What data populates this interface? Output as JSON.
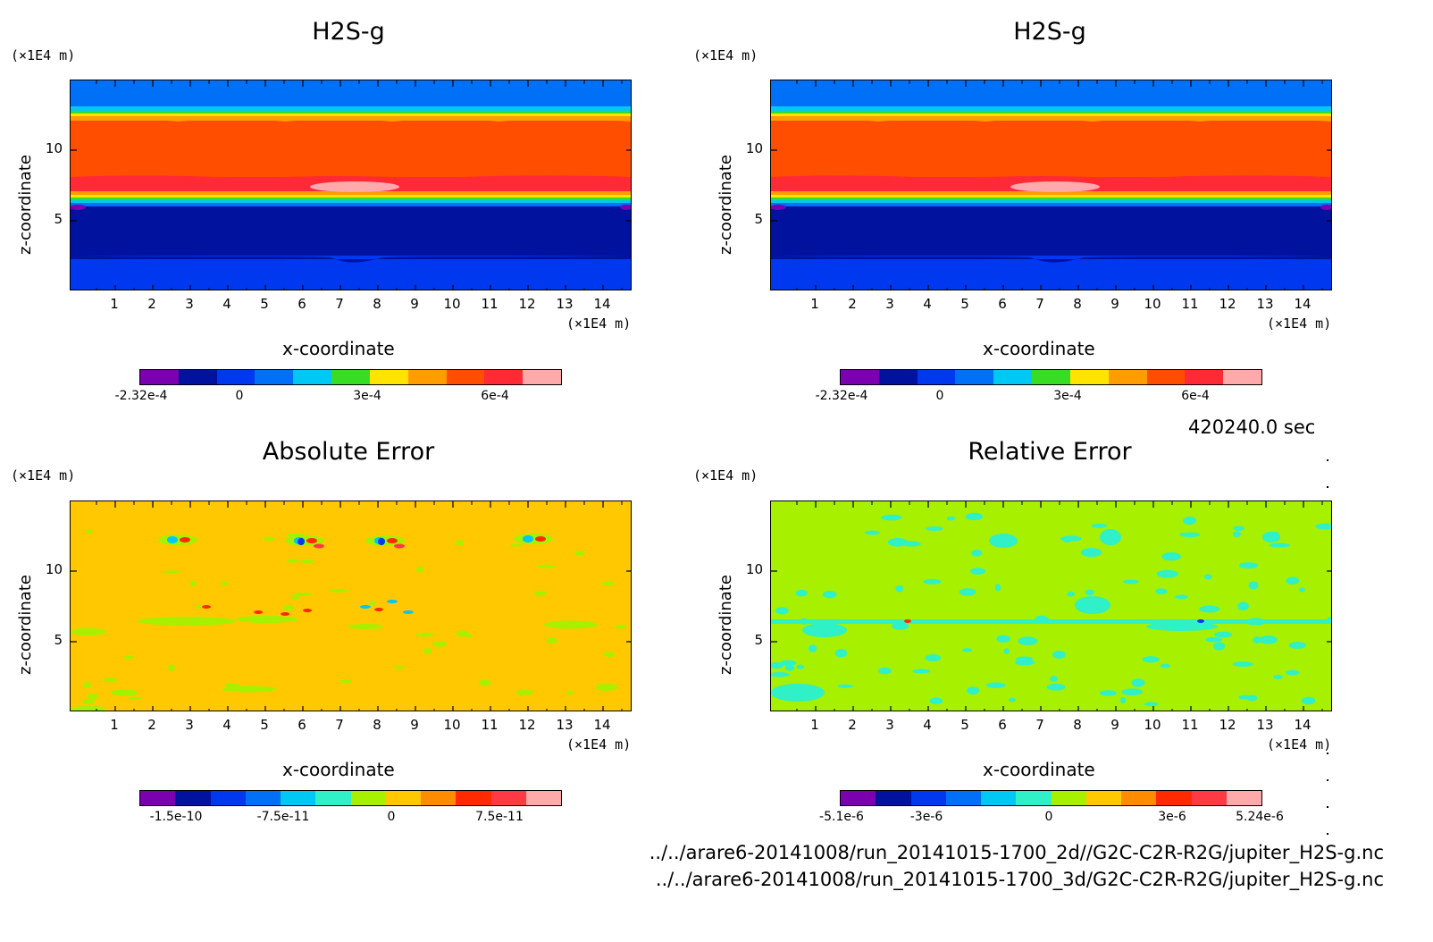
{
  "panels": [
    {
      "title": "H2S-g",
      "yunit": "(×1E4 m)",
      "xunit": "(×1E4 m)",
      "xlabel": "x-coordinate",
      "ylabel": "z-coordinate",
      "xticks": [
        "1",
        "2",
        "3",
        "4",
        "5",
        "6",
        "7",
        "8",
        "9",
        "10",
        "11",
        "12",
        "13",
        "14"
      ],
      "yticks": [
        "10",
        "5"
      ],
      "colorbar_labels": [
        "-2.32e-4",
        "0",
        "3e-4",
        "6e-4"
      ],
      "colorbar_colors": [
        "#7a00b0",
        "#00129e",
        "#0038f0",
        "#0070f6",
        "#00c8f4",
        "#39dc24",
        "#ffe400",
        "#ff9c00",
        "#ff4e00",
        "#ff2a36",
        "#ffaaaa"
      ]
    },
    {
      "title": "H2S-g",
      "yunit": "(×1E4 m)",
      "xunit": "(×1E4 m)",
      "xlabel": "x-coordinate",
      "ylabel": "z-coordinate",
      "xticks": [
        "1",
        "2",
        "3",
        "4",
        "5",
        "6",
        "7",
        "8",
        "9",
        "10",
        "11",
        "12",
        "13",
        "14"
      ],
      "yticks": [
        "10",
        "5"
      ],
      "colorbar_labels": [
        "-2.32e-4",
        "0",
        "3e-4",
        "6e-4"
      ],
      "colorbar_colors": [
        "#7a00b0",
        "#00129e",
        "#0038f0",
        "#0070f6",
        "#00c8f4",
        "#39dc24",
        "#ffe400",
        "#ff9c00",
        "#ff4e00",
        "#ff2a36",
        "#ffaaaa"
      ]
    },
    {
      "title": "Absolute Error",
      "yunit": "(×1E4 m)",
      "xunit": "(×1E4 m)",
      "xlabel": "x-coordinate",
      "ylabel": "z-coordinate",
      "xticks": [
        "1",
        "2",
        "3",
        "4",
        "5",
        "6",
        "7",
        "8",
        "9",
        "10",
        "11",
        "12",
        "13",
        "14"
      ],
      "yticks": [
        "10",
        "5"
      ],
      "colorbar_labels": [
        "-1.5e-10",
        "-7.5e-11",
        "0",
        "7.5e-11"
      ],
      "colorbar_colors": [
        "#7a00b0",
        "#00129e",
        "#0038f0",
        "#0070f6",
        "#00c8f4",
        "#30f0c8",
        "#a6f000",
        "#ffc800",
        "#ff8c00",
        "#ff2a00",
        "#ff3a44",
        "#ffaaaa"
      ]
    },
    {
      "title": "Relative Error",
      "yunit": "(×1E4 m)",
      "xunit": "(×1E4 m)",
      "xlabel": "x-coordinate",
      "ylabel": "z-coordinate",
      "xticks": [
        "1",
        "2",
        "3",
        "4",
        "5",
        "6",
        "7",
        "8",
        "9",
        "10",
        "11",
        "12",
        "13",
        "14"
      ],
      "yticks": [
        "10",
        "5"
      ],
      "colorbar_labels": [
        "-5.1e-6",
        "-3e-6",
        "0",
        "3e-6",
        "5.24e-6"
      ],
      "colorbar_colors": [
        "#7a00b0",
        "#00129e",
        "#0038f0",
        "#0070f6",
        "#00c8f4",
        "#30f0c8",
        "#a6f000",
        "#ffc800",
        "#ff8c00",
        "#ff2a00",
        "#ff3a44",
        "#ffaaaa"
      ]
    }
  ],
  "timestamp": "420240.0 sec",
  "footer": {
    "line1": "../../arare6-20141008/run_20141015-1700_2d//G2C-C2R-R2G/jupiter_H2S-g.nc",
    "line2": "../../arare6-20141008/run_20141015-1700_3d/G2C-C2R-R2G/jupiter_H2S-g.nc"
  },
  "chart_data": [
    {
      "type": "heatmap",
      "title": "H2S-g",
      "xlabel": "x-coordinate",
      "ylabel": "z-coordinate",
      "xlim": [
        0,
        15
      ],
      "ylim": [
        0,
        15
      ],
      "unit": "(×1E4 m)",
      "colorbar_range": [
        -0.000232,
        0.00075
      ],
      "bands_z_top_to_bottom": [
        {
          "z": [
            13.2,
            15
          ],
          "value_label": "blue (~0)"
        },
        {
          "z": [
            12.4,
            13.2
          ],
          "value_label": "cyan/green/yellow/orange transition"
        },
        {
          "z": [
            7.5,
            12.4
          ],
          "value_label": "orange-red (~6e-4)"
        },
        {
          "z": [
            6.3,
            7.5
          ],
          "value_label": "red / transition"
        },
        {
          "z": [
            2.4,
            6.3
          ],
          "value_label": "dark blue (negative)"
        },
        {
          "z": [
            0,
            2.4
          ],
          "value_label": "blue"
        }
      ],
      "features": [
        {
          "name": "pink lens",
          "x": 7.6,
          "z": 7.3
        }
      ]
    },
    {
      "type": "heatmap",
      "title": "H2S-g",
      "xlabel": "x-coordinate",
      "ylabel": "z-coordinate",
      "xlim": [
        0,
        15
      ],
      "ylim": [
        0,
        15
      ],
      "unit": "(×1E4 m)",
      "colorbar_range": [
        -0.000232,
        0.00075
      ]
    },
    {
      "type": "heatmap",
      "title": "Absolute Error",
      "xlabel": "x-coordinate",
      "ylabel": "z-coordinate",
      "xlim": [
        0,
        15
      ],
      "ylim": [
        0,
        15
      ],
      "colorbar_range": [
        -1.5e-10,
        1.125e-10
      ],
      "background_level": "0 (orange-yellow)"
    },
    {
      "type": "heatmap",
      "title": "Relative Error",
      "xlabel": "x-coordinate",
      "ylabel": "z-coordinate",
      "xlim": [
        0,
        15
      ],
      "ylim": [
        0,
        15
      ],
      "colorbar_range": [
        -5.1e-06,
        5.24e-06
      ],
      "background_level": "0 (yellow-green)"
    }
  ]
}
